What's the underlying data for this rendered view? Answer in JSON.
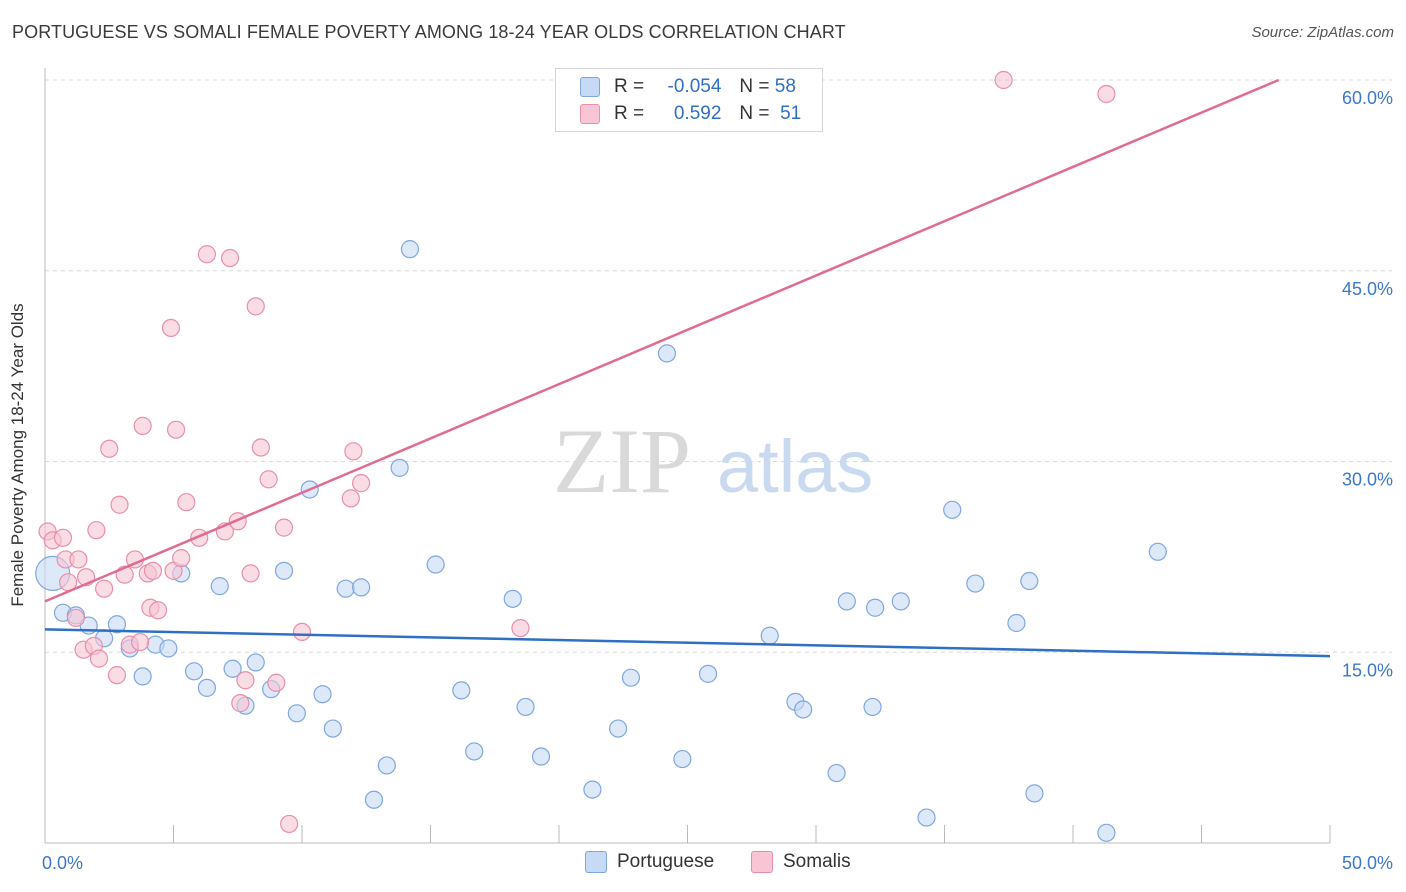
{
  "title": "PORTUGUESE VS SOMALI FEMALE POVERTY AMONG 18-24 YEAR OLDS CORRELATION CHART",
  "source": "Source: ZipAtlas.com",
  "watermark": {
    "zip": "ZIP",
    "atlas": "atlas"
  },
  "colors": {
    "portuguese_fill": "#c6d9f5",
    "portuguese_stroke": "#7fa7e0",
    "portuguese_line": "#2f6fc4",
    "somali_fill": "#f7c5d4",
    "somali_stroke": "#e88fab",
    "somali_line": "#e06b93",
    "tick_label": "#3c78c8",
    "grid": "#d8d8d8"
  },
  "legend": {
    "rows": [
      {
        "r_label": "R =",
        "r_value": "-0.054",
        "n_label": "N =",
        "n_value": "58"
      },
      {
        "r_label": "R =",
        "r_value": "0.592",
        "n_label": "N =",
        "n_value": "51"
      }
    ]
  },
  "bottom_legend": [
    "Portuguese",
    "Somalis"
  ],
  "chart_data": {
    "type": "scatter",
    "title": "PORTUGUESE VS SOMALI FEMALE POVERTY AMONG 18-24 YEAR OLDS CORRELATION CHART",
    "xlabel": "",
    "ylabel": "Female Poverty Among 18-24 Year Olds",
    "xlim": [
      0,
      50
    ],
    "ylim": [
      0,
      60
    ],
    "x_tick_labels": [
      "0.0%",
      "50.0%"
    ],
    "y_ticks": [
      15,
      30,
      45,
      60
    ],
    "y_tick_labels": [
      "15.0%",
      "30.0%",
      "45.0%",
      "60.0%"
    ],
    "grid": true,
    "legend_position": "top-center",
    "series": [
      {
        "name": "Portuguese",
        "trend": {
          "x": [
            0,
            50
          ],
          "y": [
            16.8,
            14.7
          ]
        },
        "points": [
          [
            0.3,
            21.2
          ],
          [
            0.7,
            18.1
          ],
          [
            1.2,
            17.9
          ],
          [
            1.7,
            17.1
          ],
          [
            2.3,
            16.1
          ],
          [
            2.8,
            17.2
          ],
          [
            3.3,
            15.3
          ],
          [
            3.8,
            13.1
          ],
          [
            4.3,
            15.6
          ],
          [
            4.8,
            15.3
          ],
          [
            5.3,
            21.2
          ],
          [
            5.8,
            13.5
          ],
          [
            6.3,
            12.2
          ],
          [
            6.8,
            20.2
          ],
          [
            7.3,
            13.7
          ],
          [
            7.8,
            10.8
          ],
          [
            8.2,
            14.2
          ],
          [
            8.8,
            12.1
          ],
          [
            9.3,
            21.4
          ],
          [
            9.8,
            10.2
          ],
          [
            10.3,
            27.8
          ],
          [
            10.8,
            11.7
          ],
          [
            11.2,
            9.0
          ],
          [
            11.7,
            20.0
          ],
          [
            12.3,
            20.1
          ],
          [
            12.8,
            3.4
          ],
          [
            13.3,
            6.1
          ],
          [
            13.8,
            29.5
          ],
          [
            14.2,
            46.7
          ],
          [
            15.2,
            21.9
          ],
          [
            16.2,
            12.0
          ],
          [
            16.7,
            7.2
          ],
          [
            18.2,
            19.2
          ],
          [
            18.7,
            10.7
          ],
          [
            19.3,
            6.8
          ],
          [
            21.3,
            4.2
          ],
          [
            22.3,
            9.0
          ],
          [
            22.8,
            13.0
          ],
          [
            24.2,
            38.5
          ],
          [
            24.8,
            6.6
          ],
          [
            25.8,
            13.3
          ],
          [
            28.2,
            16.3
          ],
          [
            29.2,
            11.1
          ],
          [
            29.5,
            10.5
          ],
          [
            30.8,
            5.5
          ],
          [
            31.2,
            19.0
          ],
          [
            32.2,
            10.7
          ],
          [
            32.3,
            18.5
          ],
          [
            33.3,
            19.0
          ],
          [
            34.3,
            2.0
          ],
          [
            35.3,
            26.2
          ],
          [
            36.2,
            20.4
          ],
          [
            37.8,
            17.3
          ],
          [
            38.3,
            20.6
          ],
          [
            38.5,
            3.9
          ],
          [
            41.3,
            0.8
          ],
          [
            43.3,
            22.9
          ],
          [
            25.5,
            57.0
          ]
        ]
      },
      {
        "name": "Somalis",
        "trend": {
          "x": [
            0,
            48
          ],
          "y": [
            19.0,
            60.0
          ]
        },
        "points": [
          [
            0.1,
            24.5
          ],
          [
            0.3,
            23.8
          ],
          [
            0.7,
            24.0
          ],
          [
            0.8,
            22.3
          ],
          [
            0.9,
            20.5
          ],
          [
            1.2,
            17.7
          ],
          [
            1.3,
            22.3
          ],
          [
            1.5,
            15.2
          ],
          [
            1.6,
            20.9
          ],
          [
            1.9,
            15.5
          ],
          [
            2.0,
            24.6
          ],
          [
            2.1,
            14.5
          ],
          [
            2.3,
            20.0
          ],
          [
            2.5,
            31.0
          ],
          [
            2.8,
            13.2
          ],
          [
            2.9,
            26.6
          ],
          [
            3.1,
            21.1
          ],
          [
            3.3,
            15.6
          ],
          [
            3.5,
            22.3
          ],
          [
            3.7,
            15.8
          ],
          [
            3.8,
            32.8
          ],
          [
            4.0,
            21.2
          ],
          [
            4.1,
            18.5
          ],
          [
            4.2,
            21.4
          ],
          [
            4.4,
            18.3
          ],
          [
            4.9,
            40.5
          ],
          [
            5.0,
            21.4
          ],
          [
            5.1,
            32.5
          ],
          [
            5.3,
            22.4
          ],
          [
            5.5,
            26.8
          ],
          [
            6.0,
            24.0
          ],
          [
            6.3,
            46.3
          ],
          [
            7.0,
            24.5
          ],
          [
            7.2,
            46.0
          ],
          [
            7.5,
            25.3
          ],
          [
            7.6,
            11.0
          ],
          [
            7.8,
            12.8
          ],
          [
            8.0,
            21.2
          ],
          [
            8.2,
            42.2
          ],
          [
            8.4,
            31.1
          ],
          [
            8.7,
            28.6
          ],
          [
            9.0,
            12.6
          ],
          [
            9.3,
            24.8
          ],
          [
            9.5,
            1.5
          ],
          [
            10.0,
            16.6
          ],
          [
            11.9,
            27.1
          ],
          [
            12.0,
            30.8
          ],
          [
            12.3,
            28.3
          ],
          [
            18.5,
            16.9
          ],
          [
            37.3,
            60.0
          ],
          [
            41.3,
            58.9
          ]
        ]
      }
    ]
  }
}
